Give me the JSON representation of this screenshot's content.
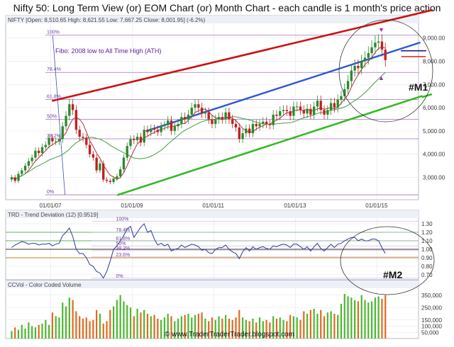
{
  "title": "Nifty 50: Long Term View (or) EOM Chart (or) Month Chart - each candle is 1 month's price action",
  "watermark": "© www.TraderTraderTrader.blogspot.com",
  "chart_data": [
    {
      "type": "candlestick",
      "header": "NIFTY [Open: 8,510.65  High: 8,621.55  Low: 7,667.25  Close: 8,001.95] (-6.2%)",
      "annotation": "Fibo: 2008 low to All Time High (ATH)",
      "marker": "#M1",
      "xticks": [
        "01/01/07",
        "01/01/09",
        "01/01/11",
        "01/01/13",
        "01/01/15"
      ],
      "yticks": [
        "3,000.00",
        "4,000.00",
        "5,000.00",
        "6,000.00",
        "7,000.00",
        "8,000.00",
        "9,000.00"
      ],
      "ylim": [
        2100,
        9600
      ],
      "fib_levels": [
        {
          "label": "100%",
          "value": 9120
        },
        {
          "label": "78.4%",
          "value": 7520
        },
        {
          "label": "61.8%",
          "value": 6350
        },
        {
          "label": "50%",
          "value": 5500
        },
        {
          "label": "38.2%",
          "value": 4660
        },
        {
          "label": "0%",
          "value": 2250
        }
      ],
      "close": [
        3000,
        2850,
        3150,
        3300,
        3500,
        3700,
        3850,
        4150,
        4050,
        4300,
        4400,
        4700,
        4550,
        4550,
        4650,
        5200,
        5650,
        6150,
        5900,
        5050,
        4750,
        4700,
        4400,
        4000,
        3850,
        3300,
        3600,
        2900,
        2850,
        2800,
        2950,
        3050,
        3350,
        3850,
        4350,
        4650,
        4600,
        4750,
        4500,
        5050,
        4950,
        5100,
        5050,
        4950,
        5200,
        5250,
        5450,
        5000,
        5200,
        5300,
        5600,
        5500,
        5700,
        6000,
        6150,
        6000,
        5750,
        5800,
        5500,
        5300,
        5500,
        5600,
        5500,
        5800,
        5500,
        5300,
        5150,
        4650,
        4900,
        5100,
        4900,
        5300,
        5200,
        5300,
        5400,
        5300,
        5250,
        5700,
        5650,
        5850,
        5900,
        5850,
        5650,
        6050,
        6050,
        5900,
        5750,
        5950,
        5700,
        6050,
        6300,
        5900,
        5700,
        5900,
        6200,
        6000,
        6350,
        6500,
        6800,
        7150,
        7600,
        7800,
        7700,
        8000,
        8150,
        8350,
        8600,
        8800,
        8850,
        8500,
        8050
      ],
      "lines": {
        "red_upper": [
          [
            2007.05,
            6300
          ],
          [
            2016.35,
            10200
          ]
        ],
        "blue_channel": [
          [
            2009.35,
            5000
          ],
          [
            2016.05,
            8800
          ]
        ],
        "green_lower": [
          [
            2008.65,
            2250
          ],
          [
            2016.1,
            6500
          ]
        ],
        "pink_resistance": [
          [
            2015.6,
            8450
          ],
          [
            2016.2,
            8450
          ]
        ]
      }
    },
    {
      "type": "line",
      "header": "TRD - Trend Deviation (12) [0.9519]",
      "yticks": [
        "0.70",
        "0.80",
        "0.90",
        "1.00",
        "1.10",
        "1.20",
        "1.30"
      ],
      "ylim": [
        0.65,
        1.35
      ],
      "fib_levels": [
        "100%",
        "78.4%",
        "61.8%",
        "50%",
        "38.2%",
        "23.6%",
        "0%"
      ],
      "marker": "#M2",
      "values": [
        1.02,
        1.05,
        1.07,
        1.09,
        1.08,
        1.06,
        1.07,
        1.07,
        1.05,
        1.06,
        1.06,
        1.07,
        1.04,
        1.06,
        1.07,
        1.16,
        1.2,
        1.25,
        1.15,
        1.0,
        0.95,
        0.95,
        0.9,
        0.82,
        0.8,
        0.74,
        0.72,
        0.66,
        0.74,
        0.86,
        1.0,
        1.04,
        1.1,
        1.16,
        1.24,
        1.27,
        1.14,
        1.2,
        1.26,
        1.3,
        1.2,
        1.22,
        1.12,
        1.05,
        1.07,
        1.04,
        1.06,
        0.98,
        1.0,
        1.01,
        1.05,
        1.02,
        1.04,
        1.06,
        1.05,
        1.03,
        0.99,
        1.0,
        0.96,
        0.95,
        1.0,
        1.02,
        1.02,
        1.05,
        1.0,
        0.97,
        0.95,
        0.89,
        0.97,
        1.02,
        0.98,
        1.03,
        1.0,
        1.02,
        1.03,
        1.01,
        1.0,
        1.04,
        1.03,
        1.05,
        1.06,
        1.05,
        1.02,
        1.06,
        1.06,
        1.03,
        1.0,
        1.03,
        0.98,
        1.03,
        1.07,
        1.01,
        0.98,
        1.02,
        1.06,
        1.02,
        1.06,
        1.07,
        1.1,
        1.12,
        1.14,
        1.14,
        1.1,
        1.12,
        1.1,
        1.1,
        1.12,
        1.12,
        1.1,
        1.02,
        0.95
      ]
    },
    {
      "type": "bar",
      "header": "CCVol - Color Coded Volume",
      "yticks": [
        "50,000",
        "100,000",
        "150,000",
        "250,000",
        "350,000"
      ],
      "ylim": [
        0,
        400000
      ],
      "values": [
        60000,
        90000,
        70000,
        110000,
        80000,
        130000,
        100000,
        90000,
        110000,
        120000,
        150000,
        110000,
        210000,
        180000,
        170000,
        290000,
        260000,
        330000,
        310000,
        220000,
        180000,
        160000,
        170000,
        140000,
        150000,
        230000,
        200000,
        120000,
        140000,
        230000,
        260000,
        310000,
        350000,
        300000,
        270000,
        250000,
        180000,
        240000,
        210000,
        230000,
        200000,
        180000,
        190000,
        160000,
        150000,
        170000,
        200000,
        180000,
        140000,
        160000,
        180000,
        190000,
        200000,
        170000,
        190000,
        200000,
        210000,
        160000,
        140000,
        170000,
        150000,
        180000,
        160000,
        190000,
        160000,
        150000,
        170000,
        230000,
        170000,
        150000,
        140000,
        160000,
        130000,
        170000,
        140000,
        150000,
        130000,
        180000,
        160000,
        170000,
        150000,
        140000,
        190000,
        180000,
        170000,
        150000,
        220000,
        200000,
        230000,
        240000,
        200000,
        230000,
        180000,
        210000,
        220000,
        200000,
        190000,
        280000,
        360000,
        340000,
        330000,
        310000,
        300000,
        350000,
        310000,
        290000,
        300000,
        330000,
        340000,
        320000,
        350000
      ]
    }
  ]
}
